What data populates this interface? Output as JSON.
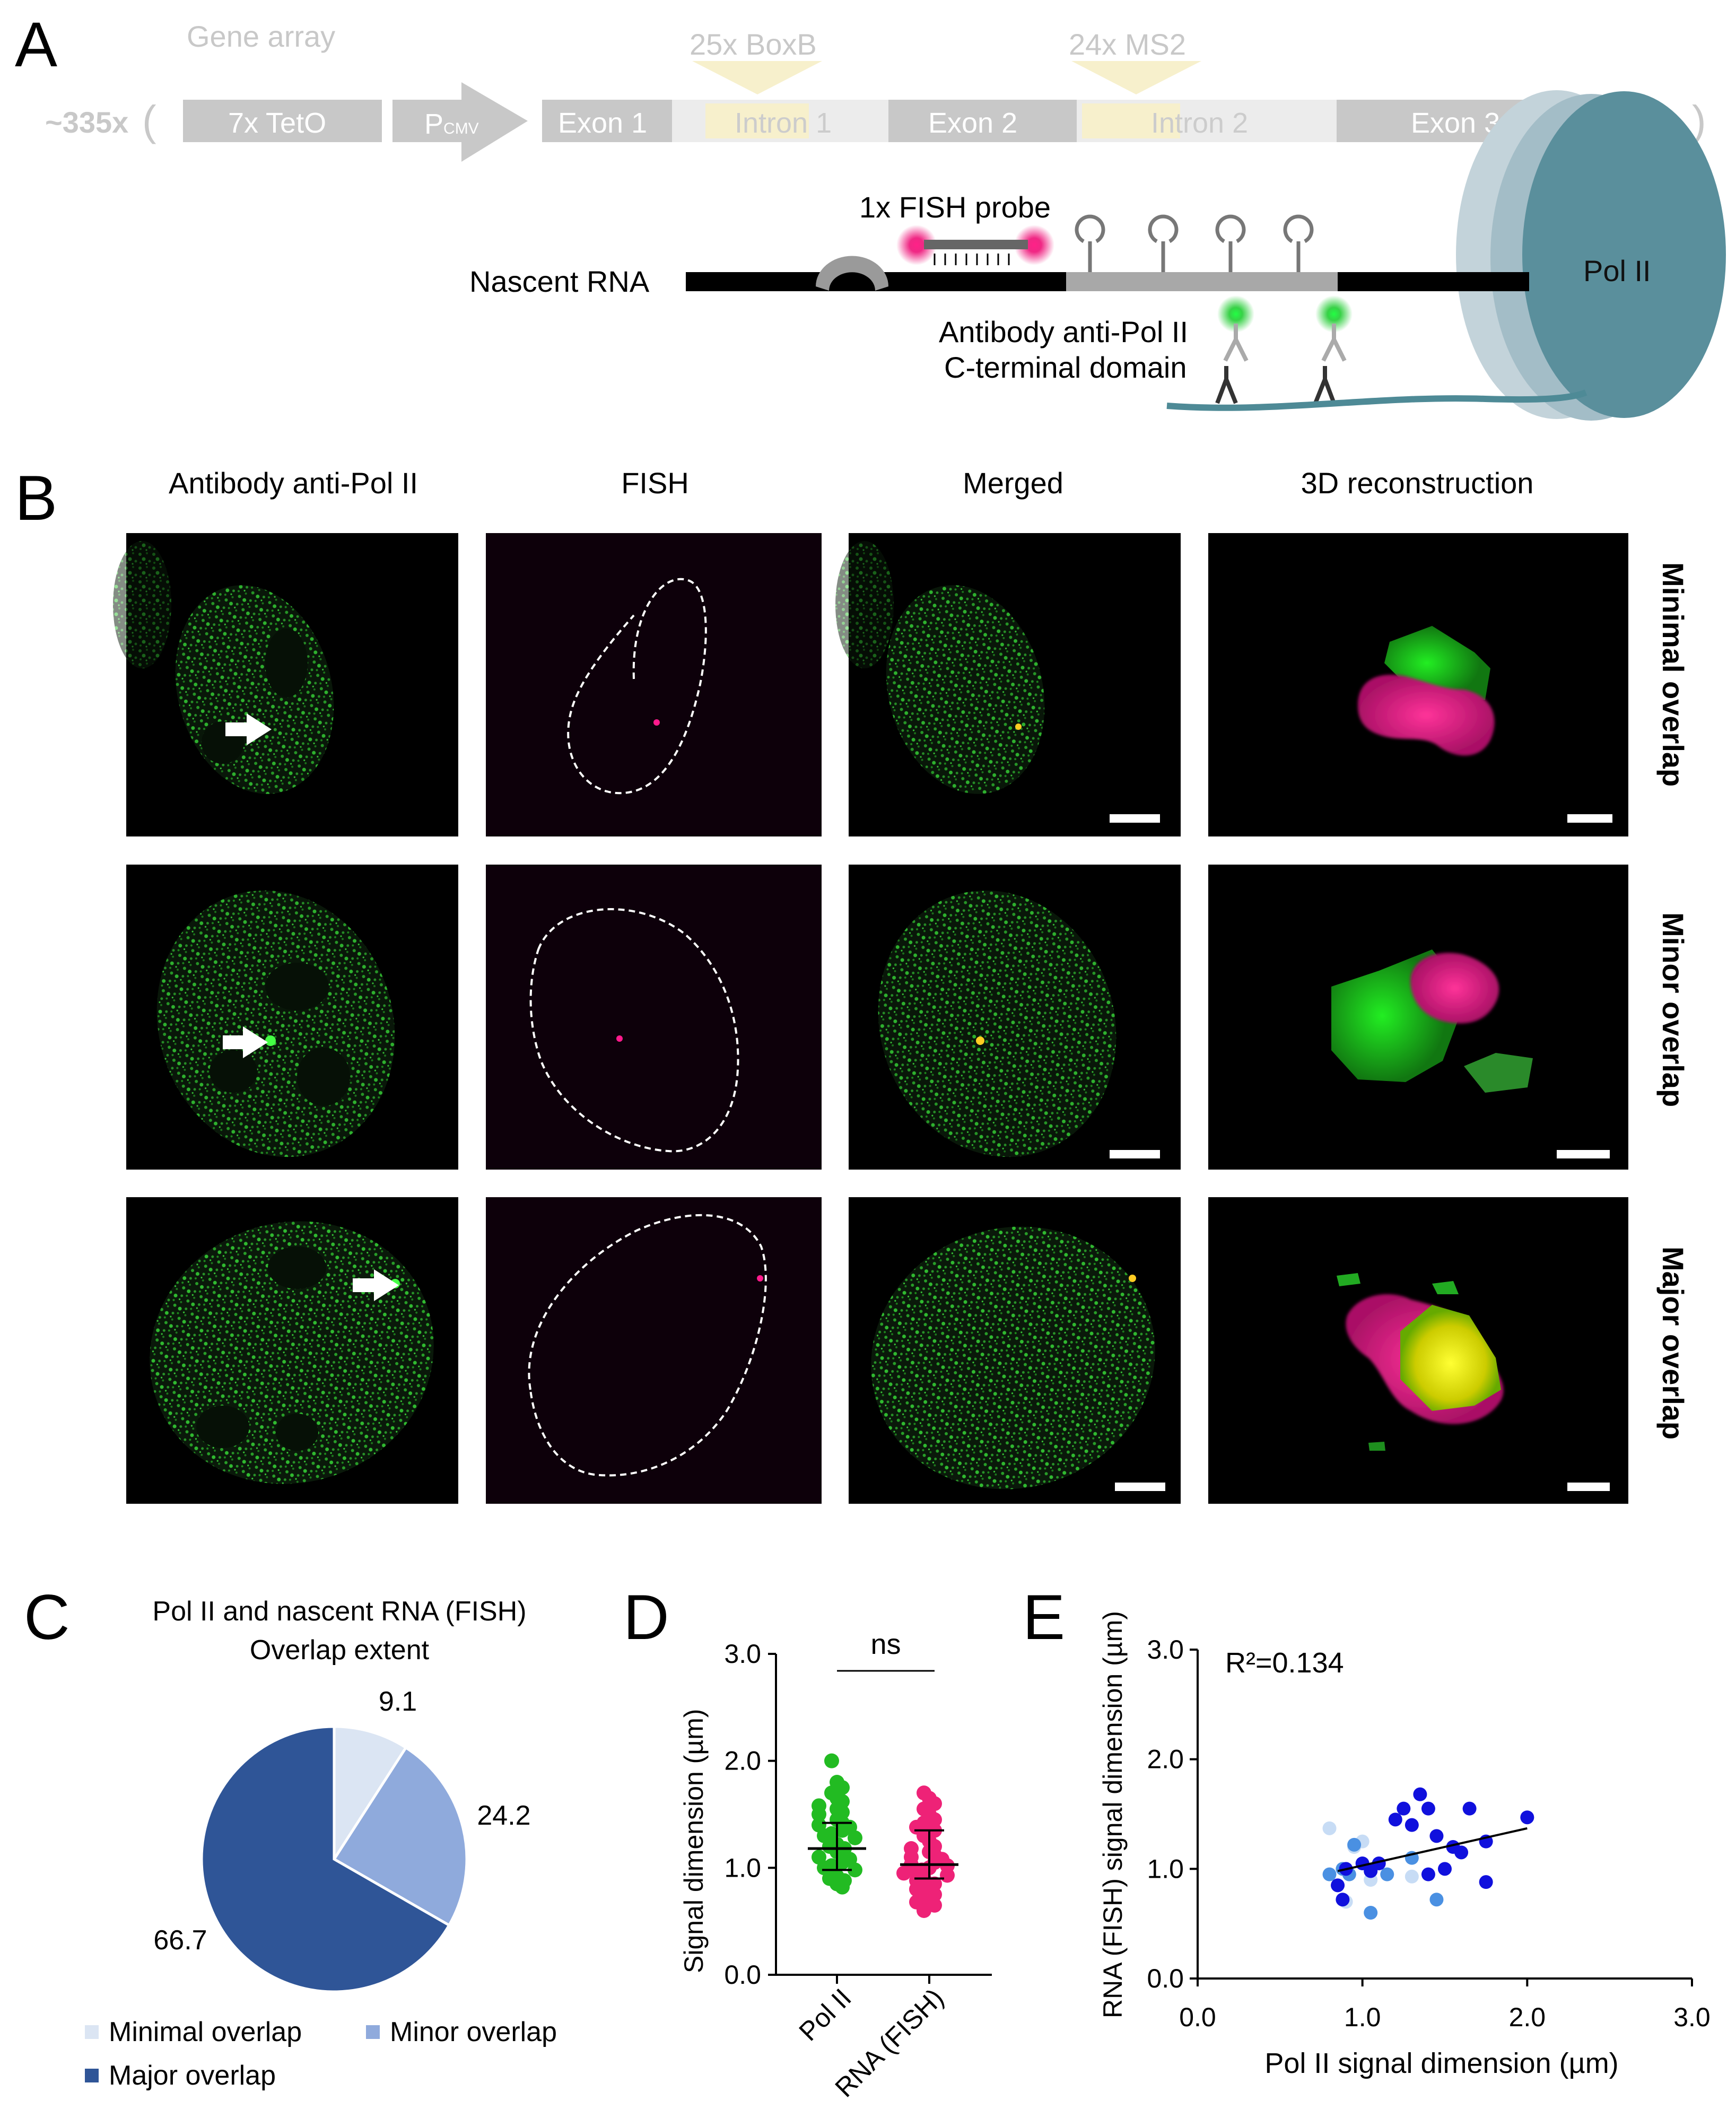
{
  "panel_labels": {
    "a": "A",
    "b": "B",
    "c": "C",
    "d": "D",
    "e": "E"
  },
  "panel_a": {
    "gene_array": "Gene array",
    "copies": "~335x",
    "open_paren": "(",
    "close_paren": ")",
    "tet": "7x TetO",
    "promoter": "P",
    "promoter_sub": "CMV",
    "exon1": "Exon 1",
    "intron1": "Intron 1",
    "exon2": "Exon 2",
    "intron2": "Intron 2",
    "exon3": "Exon 3",
    "boxb": "25x BoxB",
    "ms2": "24x MS2",
    "fish_probe": "1x FISH probe",
    "nascent_rna": "Nascent RNA",
    "antibody_line1": "Antibody anti-Pol II",
    "antibody_line2": "C-terminal domain",
    "pol2": "Pol II"
  },
  "panel_b": {
    "col_headers": [
      "Antibody anti-Pol II",
      "FISH",
      "Merged",
      "3D reconstruction"
    ],
    "row_labels": [
      "Minimal overlap",
      "Minor overlap",
      "Major overlap"
    ]
  },
  "panel_c": {
    "title_line1": "Pol II and nascent RNA (FISH)",
    "title_line2": "Overlap extent",
    "legend": [
      "Minimal overlap",
      "Minor overlap",
      "Major overlap"
    ],
    "colors": [
      "#dbe5f3",
      "#8faadc",
      "#2f5597"
    ]
  },
  "panel_d": {
    "ns": "ns",
    "ylabel": "Signal dimension (µm)",
    "yticks": [
      "0.0",
      "1.0",
      "2.0",
      "3.0"
    ],
    "xticks": [
      "Pol II",
      "RNA (FISH)"
    ],
    "colors": [
      "#22bb22",
      "#ee2277"
    ]
  },
  "panel_e": {
    "r2": "R²=0.134",
    "ylabel": "RNA (FISH) signal dimension (µm)",
    "xlabel": "Pol II signal dimension (µm)",
    "yticks": [
      "0.0",
      "1.0",
      "2.0",
      "3.0"
    ],
    "xticks": [
      "0.0",
      "1.0",
      "2.0",
      "3.0"
    ],
    "colors": [
      "#c7dcf5",
      "#4a90e2",
      "#1010dd"
    ]
  },
  "chart_data": [
    {
      "type": "pie",
      "title": "Pol II and nascent RNA (FISH) Overlap extent",
      "categories": [
        "Minimal overlap",
        "Minor overlap",
        "Major overlap"
      ],
      "values": [
        9.1,
        24.2,
        66.7
      ]
    },
    {
      "type": "scatter",
      "ylabel": "Signal dimension (µm)",
      "ylim": [
        0,
        3
      ],
      "categories": [
        "Pol II",
        "RNA (FISH)"
      ],
      "series": [
        {
          "name": "Pol II",
          "mean": 1.18,
          "sd": [
            0.98,
            1.42
          ],
          "values": [
            2.0,
            1.8,
            1.75,
            1.7,
            1.65,
            1.62,
            1.58,
            1.55,
            1.52,
            1.5,
            1.45,
            1.42,
            1.4,
            1.38,
            1.35,
            1.32,
            1.3,
            1.28,
            1.25,
            1.22,
            1.2,
            1.18,
            1.15,
            1.12,
            1.1,
            1.08,
            1.05,
            1.02,
            1.0,
            0.98,
            0.95,
            0.92,
            0.9,
            0.88,
            0.85,
            0.82
          ]
        },
        {
          "name": "RNA (FISH)",
          "mean": 1.03,
          "sd": [
            0.9,
            1.35
          ],
          "values": [
            1.7,
            1.65,
            1.6,
            1.55,
            1.5,
            1.45,
            1.42,
            1.38,
            1.35,
            1.3,
            1.25,
            1.2,
            1.18,
            1.15,
            1.12,
            1.1,
            1.08,
            1.05,
            1.03,
            1.0,
            0.98,
            0.96,
            0.95,
            0.93,
            0.9,
            0.88,
            0.85,
            0.82,
            0.8,
            0.75,
            0.72,
            0.68,
            0.65,
            0.6,
            0.95,
            1.02
          ]
        }
      ]
    },
    {
      "type": "scatter",
      "xlabel": "Pol II signal dimension (µm)",
      "ylabel": "RNA (FISH) signal dimension (µm)",
      "xlim": [
        0,
        3
      ],
      "ylim": [
        0,
        3
      ],
      "r2": 0.134,
      "fit": {
        "x": [
          0.85,
          2.0
        ],
        "y": [
          0.98,
          1.37
        ]
      },
      "points": [
        {
          "x": 0.8,
          "y": 1.37,
          "g": 0
        },
        {
          "x": 0.9,
          "y": 0.7,
          "g": 0
        },
        {
          "x": 0.95,
          "y": 1.2,
          "g": 0
        },
        {
          "x": 1.0,
          "y": 1.25,
          "g": 0
        },
        {
          "x": 1.05,
          "y": 0.9,
          "g": 0
        },
        {
          "x": 1.3,
          "y": 0.93,
          "g": 0
        },
        {
          "x": 0.8,
          "y": 0.95,
          "g": 1
        },
        {
          "x": 0.88,
          "y": 1.0,
          "g": 1
        },
        {
          "x": 0.92,
          "y": 0.95,
          "g": 1
        },
        {
          "x": 0.95,
          "y": 1.22,
          "g": 1
        },
        {
          "x": 1.05,
          "y": 0.6,
          "g": 1
        },
        {
          "x": 1.15,
          "y": 0.95,
          "g": 1
        },
        {
          "x": 1.3,
          "y": 1.1,
          "g": 1
        },
        {
          "x": 1.45,
          "y": 0.72,
          "g": 1
        },
        {
          "x": 0.85,
          "y": 0.85,
          "g": 2
        },
        {
          "x": 0.88,
          "y": 0.72,
          "g": 2
        },
        {
          "x": 0.9,
          "y": 1.0,
          "g": 2
        },
        {
          "x": 1.0,
          "y": 1.05,
          "g": 2
        },
        {
          "x": 1.05,
          "y": 0.98,
          "g": 2
        },
        {
          "x": 1.1,
          "y": 1.05,
          "g": 2
        },
        {
          "x": 1.2,
          "y": 1.45,
          "g": 2
        },
        {
          "x": 1.25,
          "y": 1.55,
          "g": 2
        },
        {
          "x": 1.3,
          "y": 1.4,
          "g": 2
        },
        {
          "x": 1.35,
          "y": 1.68,
          "g": 2
        },
        {
          "x": 1.4,
          "y": 1.55,
          "g": 2
        },
        {
          "x": 1.4,
          "y": 0.95,
          "g": 2
        },
        {
          "x": 1.45,
          "y": 1.3,
          "g": 2
        },
        {
          "x": 1.5,
          "y": 1.0,
          "g": 2
        },
        {
          "x": 1.55,
          "y": 1.2,
          "g": 2
        },
        {
          "x": 1.6,
          "y": 1.15,
          "g": 2
        },
        {
          "x": 1.65,
          "y": 1.55,
          "g": 2
        },
        {
          "x": 1.75,
          "y": 1.25,
          "g": 2
        },
        {
          "x": 1.75,
          "y": 0.88,
          "g": 2
        },
        {
          "x": 2.0,
          "y": 1.47,
          "g": 2
        }
      ]
    }
  ]
}
